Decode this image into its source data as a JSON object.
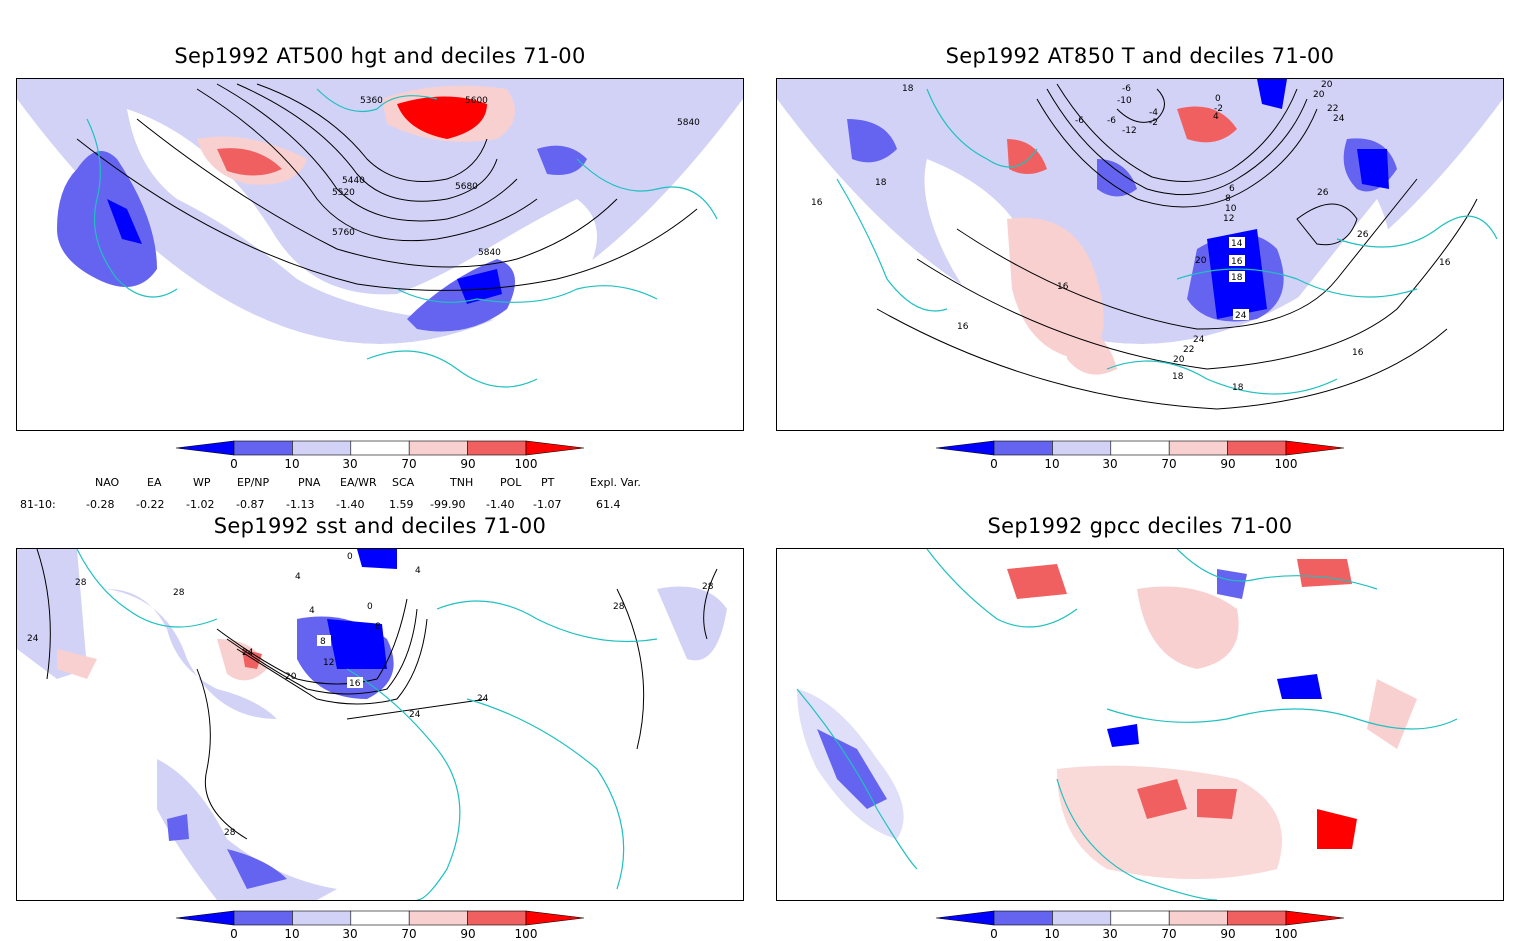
{
  "panels": {
    "hgt": {
      "title": "Sep1992 AT500 hgt and deciles 71-00",
      "contour_labels": [
        "5360",
        "5600",
        "5840",
        "5440",
        "5520",
        "5680",
        "5760",
        "5840"
      ]
    },
    "t850": {
      "title": "Sep1992 AT850 T and deciles 71-00",
      "contour_labels": [
        "18",
        "20",
        "22",
        "24",
        "20",
        "26",
        "-6",
        "-10",
        "-6",
        "-12",
        "-6",
        "0",
        "-2",
        "4",
        "-4",
        "-2",
        "16",
        "18",
        "6",
        "8",
        "10",
        "12",
        "26",
        "14",
        "16",
        "18",
        "20",
        "16",
        "24",
        "16",
        "24",
        "22",
        "20",
        "18",
        "16",
        "18",
        "16"
      ]
    },
    "sst": {
      "title": "Sep1992 sst and deciles 71-00",
      "contour_labels": [
        "28",
        "24",
        "28",
        "0",
        "4",
        "4",
        "0",
        "8",
        "4",
        "8",
        "12",
        "20",
        "24",
        "16",
        "24",
        "24",
        "28",
        "28",
        "28"
      ]
    },
    "gpcc": {
      "title": "Sep1992 gpcc deciles 71-00"
    }
  },
  "colorbar": {
    "ticks": [
      "0",
      "10",
      "30",
      "70",
      "90",
      "100"
    ],
    "colors": [
      "#0000ff",
      "#6464f0",
      "#d2d2f7",
      "#ffffff",
      "#f9d0d0",
      "#f06060",
      "#ff0000"
    ]
  },
  "indices": {
    "headers": [
      "NAO",
      "EA",
      "WP",
      "EP/NP",
      "PNA",
      "EA/WR",
      "SCA",
      "TNH",
      "POL",
      "PT",
      "Expl. Var."
    ],
    "row_label": "81-10:",
    "values": [
      "-0.28",
      "-0.22",
      "-1.02",
      "-0.87",
      "-1.13",
      "-1.40",
      "1.59",
      "-99.90",
      "-1.40",
      "-1.07",
      "61.4"
    ]
  },
  "colors": {
    "coast": "#20c0c0",
    "frame": "#000000",
    "contour": "#000000"
  }
}
